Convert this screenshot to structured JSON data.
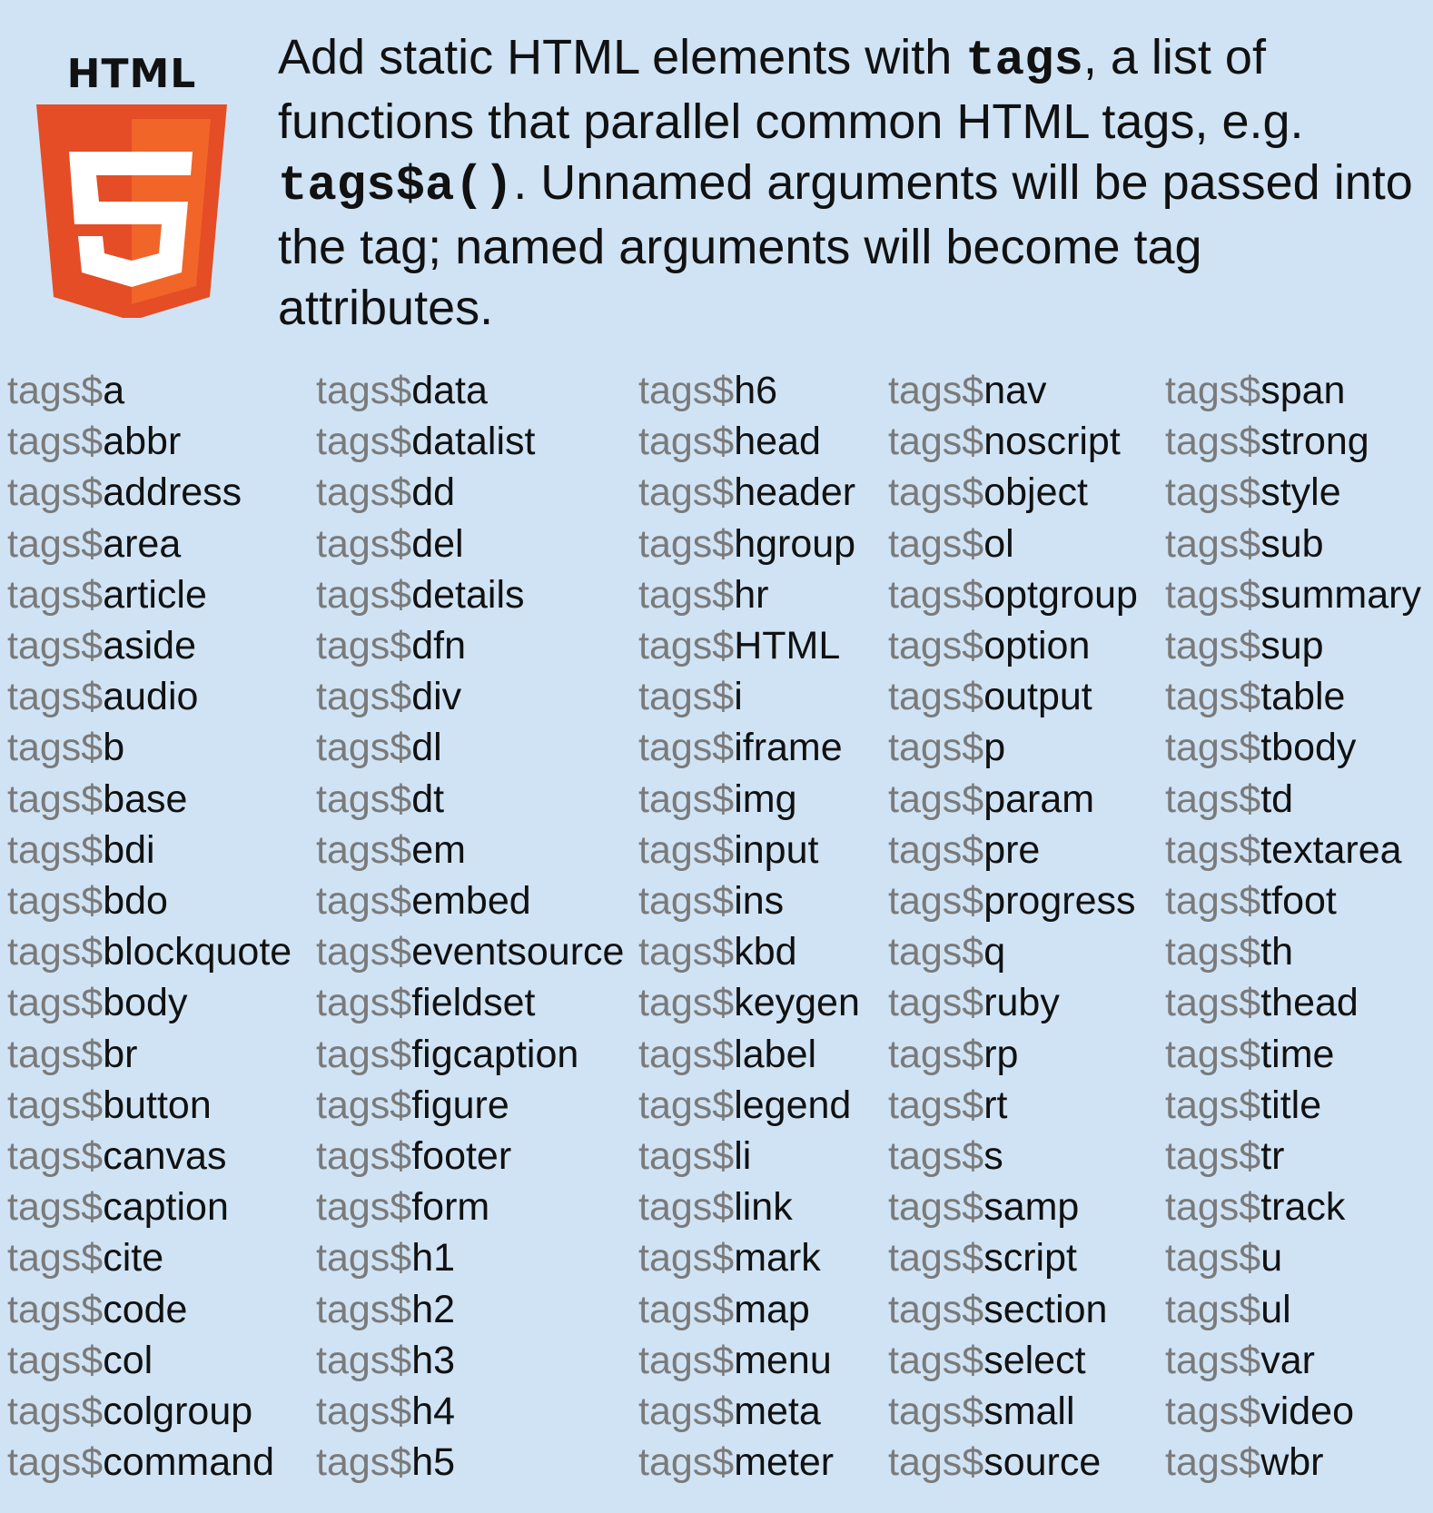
{
  "logo": {
    "word": "HTML",
    "digit": "5"
  },
  "description": {
    "part1": "Add static HTML elements with ",
    "code1": "tags",
    "part2": ", a list of functions that parallel common HTML tags, e.g. ",
    "code2": "tags$a()",
    "part3": ".  Unnamed arguments will be passed into the tag; named arguments will become tag attributes."
  },
  "prefix": "tags$",
  "columns": [
    [
      "a",
      "abbr",
      "address",
      "area",
      "article",
      "aside",
      "audio",
      "b",
      "base",
      "bdi",
      "bdo",
      "blockquote",
      "body",
      "br",
      "button",
      "canvas",
      "caption",
      "cite",
      "code",
      "col",
      "colgroup",
      "command"
    ],
    [
      "data",
      "datalist",
      "dd",
      "del",
      "details",
      "dfn",
      "div",
      "dl",
      "dt",
      "em",
      "embed",
      "eventsource",
      "fieldset",
      "figcaption",
      "figure",
      "footer",
      "form",
      "h1",
      "h2",
      "h3",
      "h4",
      "h5"
    ],
    [
      "h6",
      "head",
      "header",
      "hgroup",
      "hr",
      "HTML",
      "i",
      "iframe",
      "img",
      "input",
      "ins",
      "kbd",
      "keygen",
      "label",
      "legend",
      "li",
      "link",
      "mark",
      "map",
      "menu",
      "meta",
      "meter"
    ],
    [
      "nav",
      "noscript",
      "object",
      "ol",
      "optgroup",
      "option",
      "output",
      "p",
      "param",
      "pre",
      "progress",
      "q",
      "ruby",
      "rp",
      "rt",
      "s",
      "samp",
      "script",
      "section",
      "select",
      "small",
      "source"
    ],
    [
      "span",
      "strong",
      "style",
      "sub",
      "summary",
      "sup",
      "table",
      "tbody",
      "td",
      "textarea",
      "tfoot",
      "th",
      "thead",
      "time",
      "title",
      "tr",
      "track",
      "u",
      "ul",
      "var",
      "video",
      "wbr"
    ]
  ],
  "colors": {
    "background": "#cfe3f4",
    "shield_outer": "#e44d26",
    "shield_inner": "#f16529",
    "digit": "#ffffff",
    "prefix": "#7a7a7a",
    "text": "#111111"
  }
}
